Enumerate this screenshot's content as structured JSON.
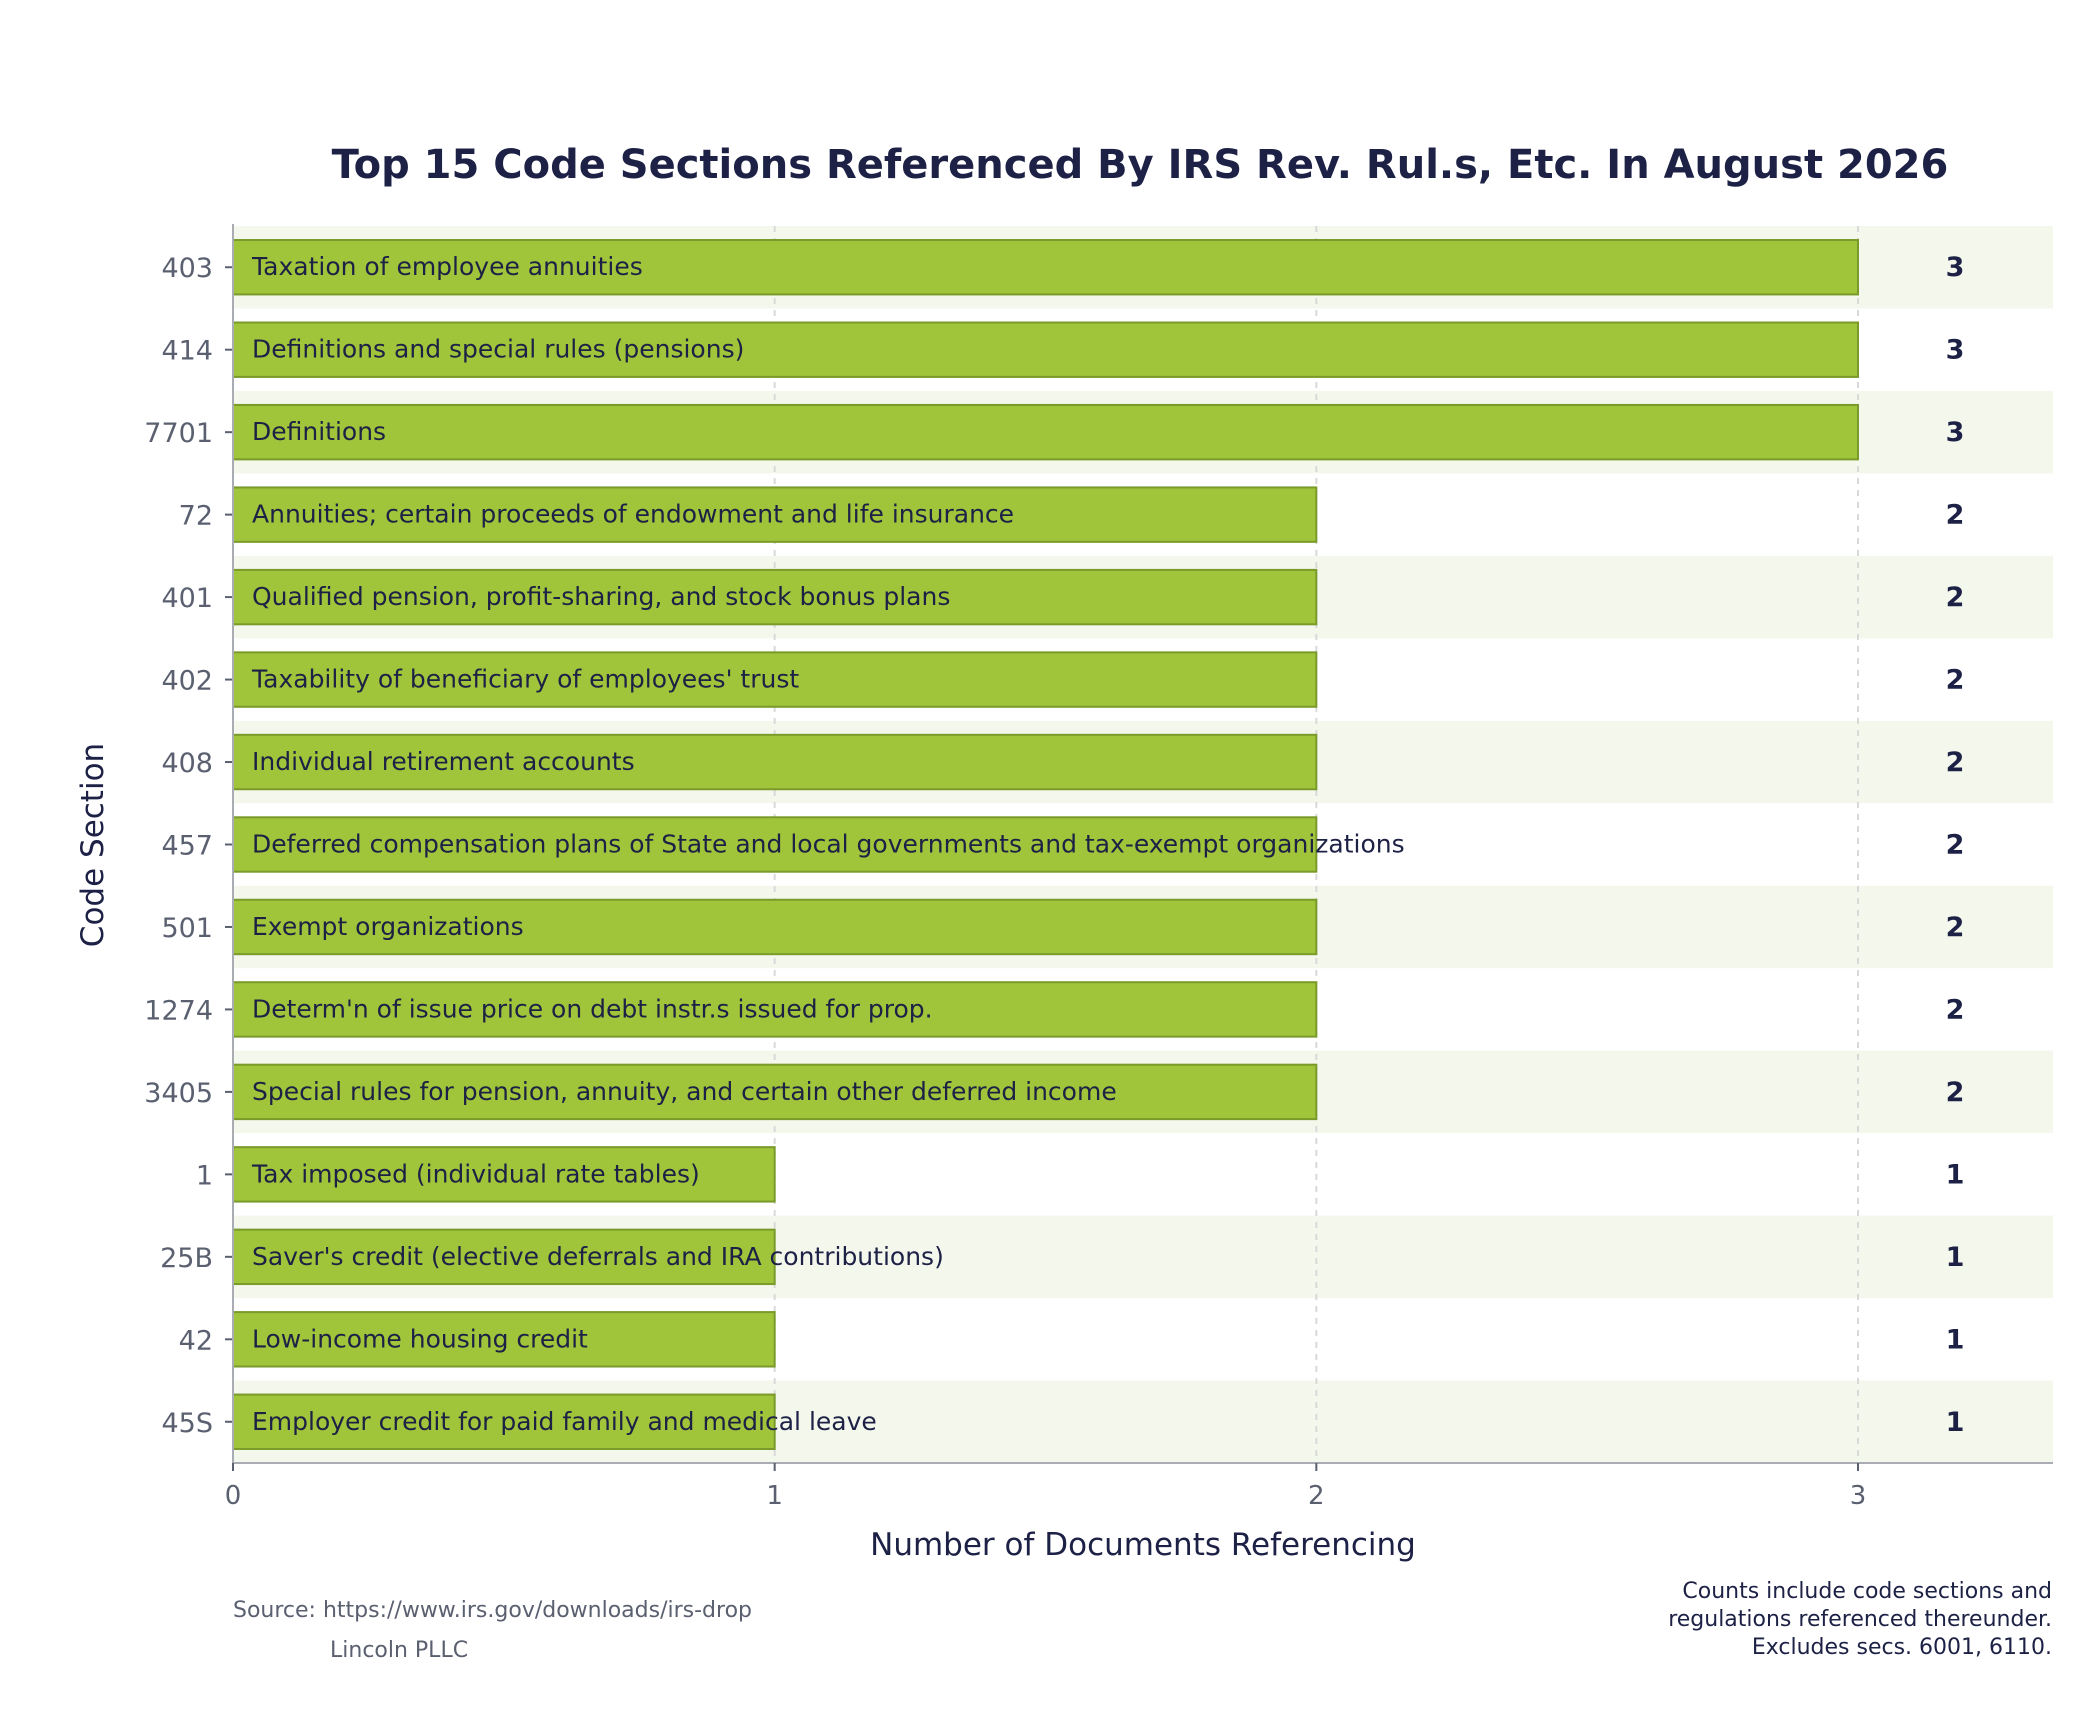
{
  "chart_data": {
    "type": "bar",
    "orientation": "horizontal",
    "title": "Top 15 Code Sections Referenced By IRS Rev. Rul.s, Etc. In August 2026",
    "xlabel": "Number of Documents Referencing",
    "ylabel": "Code Section",
    "xlim": [
      0,
      3.36
    ],
    "xticks": [
      "0",
      "1",
      "2",
      "3"
    ],
    "grid": "vertical dashed",
    "categories": [
      "403",
      "414",
      "7701",
      "72",
      "401",
      "402",
      "408",
      "457",
      "501",
      "1274",
      "3405",
      "1",
      "25B",
      "42",
      "45S"
    ],
    "descriptions": [
      "Taxation of employee annuities",
      "Definitions and special rules (pensions)",
      "Definitions",
      "Annuities; certain proceeds of endowment and life insurance",
      "Qualified pension, profit-sharing, and stock bonus plans",
      "Taxability of beneficiary of employees' trust",
      "Individual retirement accounts",
      "Deferred compensation plans of State and local governments and tax-exempt organizations",
      "Exempt organizations",
      "Determ'n of issue price on debt instr.s issued for prop.",
      "Special rules for pension, annuity, and certain other deferred income",
      "Tax imposed (individual rate tables)",
      "Saver's credit (elective deferrals and IRA contributions)",
      "Low-income housing credit",
      "Employer credit for paid family and medical leave"
    ],
    "values": [
      3,
      3,
      3,
      2,
      2,
      2,
      2,
      2,
      2,
      2,
      2,
      1,
      1,
      1,
      1
    ],
    "colors": {
      "bar_fill": "#a0c43a",
      "bar_stroke": "#7a9a2a",
      "band": "#f4f7ec",
      "text_dark": "#1c2145",
      "tick_text": "#5a6070",
      "grid": "#d9d9d9",
      "axis": "#a9acb3"
    }
  },
  "footer": {
    "source": "Source: https://www.irs.gov/downloads/irs-drop",
    "credit": "Lincoln PLLC",
    "note_lines": [
      "Counts include code sections and",
      "regulations referenced thereunder.",
      "Excludes secs. 6001, 6110."
    ]
  }
}
